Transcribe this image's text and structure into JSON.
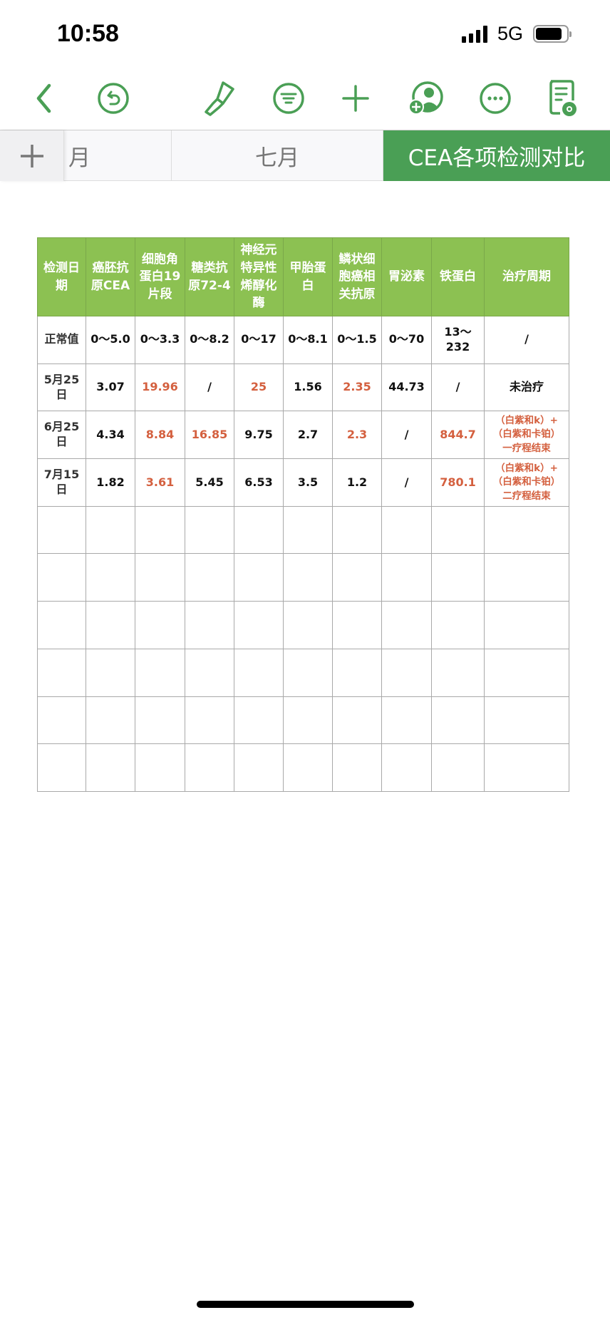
{
  "status_bar": {
    "time": "10:58",
    "network": "5G",
    "signal": "signal-bars-icon",
    "battery": "battery-icon"
  },
  "toolbar": {
    "icons": [
      "back-chevron-icon",
      "undo-icon",
      "format-brush-icon",
      "filter-icon",
      "add-icon",
      "add-collaborator-icon",
      "more-icon",
      "view-document-icon"
    ],
    "accent": "#4a9f55"
  },
  "tabs": {
    "items": [
      {
        "label": "月"
      },
      {
        "label": "七月"
      },
      {
        "label": "CEA各项检测对比",
        "active": true
      }
    ]
  },
  "table": {
    "header_color": "#8cc152",
    "highlight_color": "#d4603f",
    "headers": [
      "检测日期",
      "癌胚抗原CEA",
      "细胞角蛋白19片段",
      "糖类抗原72-4",
      "神经元特异性烯醇化酶",
      "甲胎蛋白",
      "鳞状细胞癌相关抗原",
      "胃泌素",
      "铁蛋白",
      "治疗周期"
    ],
    "rows": [
      {
        "cells": [
          "正常值",
          "0～5.0",
          "0～3.3",
          "0～8.2",
          "0～17",
          "0～8.1",
          "0～1.5",
          "0～70",
          "13～232",
          "/"
        ],
        "red": []
      },
      {
        "cells": [
          "5月25日",
          "3.07",
          "19.96",
          "/",
          "25",
          "1.56",
          "2.35",
          "44.73",
          "/",
          "未治疗"
        ],
        "red": [
          2,
          4,
          6
        ]
      },
      {
        "cells": [
          "6月25日",
          "4.34",
          "8.84",
          "16.85",
          "9.75",
          "2.7",
          "2.3",
          "/",
          "844.7",
          "（白紫和k）+（白紫和卡铂）一疗程结束"
        ],
        "red": [
          2,
          3,
          6,
          8,
          9
        ]
      },
      {
        "cells": [
          "7月15日",
          "1.82",
          "3.61",
          "5.45",
          "6.53",
          "3.5",
          "1.2",
          "/",
          "780.1",
          "（白紫和k）+（白紫和卡铂）二疗程结束"
        ],
        "red": [
          2,
          8,
          9
        ]
      }
    ],
    "empty_rows": 6
  }
}
